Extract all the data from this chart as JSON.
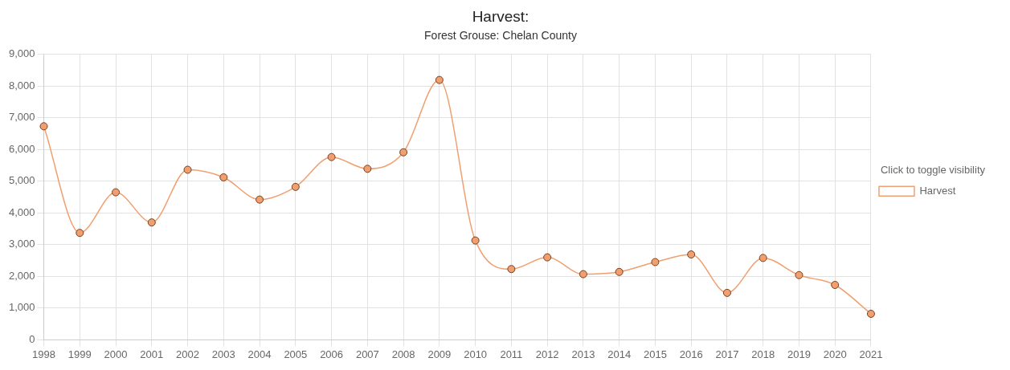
{
  "chart_data": {
    "type": "line",
    "title": "Harvest:",
    "subtitle": "Forest Grouse: Chelan County",
    "legend_title": "Click to toggle visibility",
    "categories": [
      "1998",
      "1999",
      "2000",
      "2001",
      "2002",
      "2003",
      "2004",
      "2005",
      "2006",
      "2007",
      "2008",
      "2009",
      "2010",
      "2011",
      "2012",
      "2013",
      "2014",
      "2015",
      "2016",
      "2017",
      "2018",
      "2019",
      "2020",
      "2021"
    ],
    "series": [
      {
        "name": "Harvest",
        "color": "#f0a070",
        "values": [
          6730,
          3370,
          4650,
          3700,
          5360,
          5120,
          4420,
          4820,
          5760,
          5390,
          5910,
          8190,
          3130,
          2230,
          2600,
          2070,
          2140,
          2450,
          2690,
          1480,
          2580,
          2040,
          1730,
          820
        ]
      }
    ],
    "ylim": [
      0,
      9000
    ],
    "yticks": [
      {
        "value": 0,
        "label": "0"
      },
      {
        "value": 1000,
        "label": "1,000"
      },
      {
        "value": 2000,
        "label": "2,000"
      },
      {
        "value": 3000,
        "label": "3,000"
      },
      {
        "value": 4000,
        "label": "4,000"
      },
      {
        "value": 5000,
        "label": "5,000"
      },
      {
        "value": 6000,
        "label": "6,000"
      },
      {
        "value": 7000,
        "label": "7,000"
      },
      {
        "value": 8000,
        "label": "8,000"
      },
      {
        "value": 9000,
        "label": "9,000"
      }
    ],
    "grid": true,
    "legend": "right",
    "marker": "circle",
    "line_style": "solid"
  }
}
